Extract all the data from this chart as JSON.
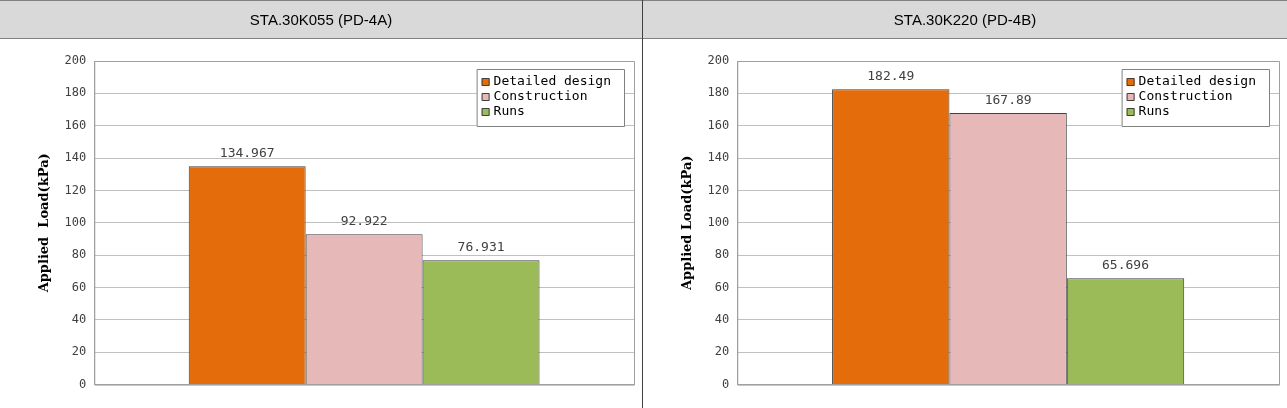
{
  "chart_data": [
    {
      "type": "bar",
      "title": "STA.30K055  (PD-4A)",
      "ylabel": "Applied  Load(kPa)",
      "categories": [
        null
      ],
      "ylim": [
        0,
        200
      ],
      "yticks": [
        0,
        20,
        40,
        60,
        80,
        100,
        120,
        140,
        160,
        180,
        200
      ],
      "grid": "y",
      "legend": "top right",
      "data_labels": true,
      "series": [
        {
          "name": "Detailed design",
          "color": "#e46c0a",
          "values": [
            134.967
          ]
        },
        {
          "name": "Construction",
          "color": "#e6b9b8",
          "values": [
            92.922
          ]
        },
        {
          "name": "Runs",
          "color": "#9bbb59",
          "values": [
            76.931
          ]
        }
      ]
    },
    {
      "type": "bar",
      "title": "STA.30K220  (PD-4B)",
      "ylabel": "Applied Load(kPa)",
      "categories": [
        null
      ],
      "ylim": [
        0,
        200
      ],
      "yticks": [
        0,
        20,
        40,
        60,
        80,
        100,
        120,
        140,
        160,
        180,
        200
      ],
      "grid": "y",
      "legend": "top right",
      "data_labels": true,
      "series": [
        {
          "name": "Detailed design",
          "color": "#e46c0a",
          "values": [
            182.49
          ]
        },
        {
          "name": "Construction",
          "color": "#e6b9b8",
          "values": [
            167.89
          ]
        },
        {
          "name": "Runs",
          "color": "#9bbb59",
          "values": [
            65.696
          ]
        }
      ]
    }
  ]
}
